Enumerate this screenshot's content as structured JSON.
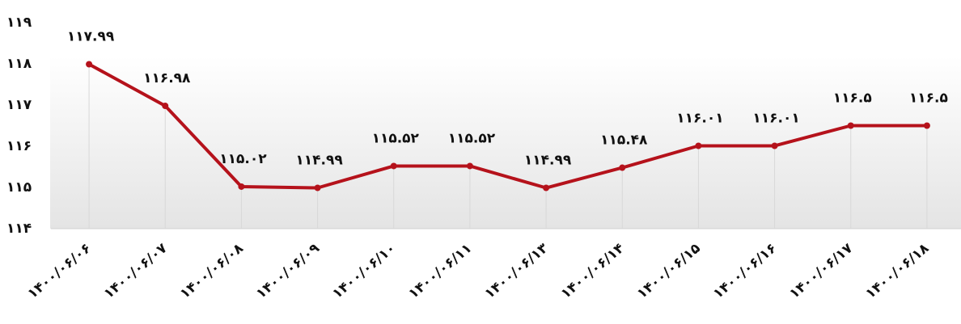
{
  "chart_data": {
    "type": "line",
    "categories": [
      "۱۴۰۰/۰۶/۰۶",
      "۱۴۰۰/۰۶/۰۷",
      "۱۴۰۰/۰۶/۰۸",
      "۱۴۰۰/۰۶/۰۹",
      "۱۴۰۰/۰۶/۱۰",
      "۱۴۰۰/۰۶/۱۱",
      "۱۴۰۰/۰۶/۱۳",
      "۱۴۰۰/۰۶/۱۴",
      "۱۴۰۰/۰۶/۱۵",
      "۱۴۰۰/۰۶/۱۶",
      "۱۴۰۰/۰۶/۱۷",
      "۱۴۰۰/۰۶/۱۸"
    ],
    "values": [
      117.99,
      116.98,
      115.02,
      114.99,
      115.52,
      115.52,
      114.99,
      115.48,
      116.01,
      116.01,
      116.5,
      116.5
    ],
    "value_labels": [
      "۱۱۷.۹۹",
      "۱۱۶.۹۸",
      "۱۱۵.۰۲",
      "۱۱۴.۹۹",
      "۱۱۵.۵۲",
      "۱۱۵.۵۲",
      "۱۱۴.۹۹",
      "۱۱۵.۴۸",
      "۱۱۶.۰۱",
      "۱۱۶.۰۱",
      "۱۱۶.۵",
      "۱۱۶.۵"
    ],
    "color": "#b5121b",
    "ylim": [
      114,
      119
    ],
    "yticks": [
      {
        "value": 114,
        "label": "۱۱۴"
      },
      {
        "value": 115,
        "label": "۱۱۵"
      },
      {
        "value": 116,
        "label": "۱۱۶"
      },
      {
        "value": 117,
        "label": "۱۱۷"
      },
      {
        "value": 118,
        "label": "۱۱۸"
      },
      {
        "value": 119,
        "label": "۱۱۹"
      }
    ],
    "grid": false
  }
}
